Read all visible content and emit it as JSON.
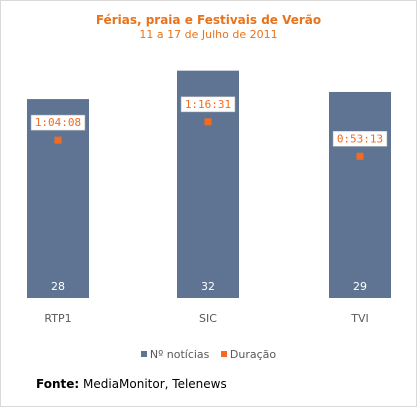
{
  "chart_data": {
    "type": "bar",
    "title": "Férias, praia e Festivais de Verão",
    "subtitle": "11 a 17 de Julho de 2011",
    "categories": [
      "RTP1",
      "SIC",
      "TVI"
    ],
    "series": [
      {
        "name": "Nº notícias",
        "type": "bar",
        "values": [
          28,
          32,
          29
        ],
        "color": "#5e7492"
      },
      {
        "name": "Duração",
        "type": "marker",
        "values": [
          "1:04:08",
          "1:16:31",
          "0:53:13"
        ],
        "seconds": [
          3848,
          4591,
          3193
        ],
        "color": "#f26b21"
      }
    ],
    "ylim": [
      0,
      33.5
    ],
    "legend_position": "bottom",
    "grid": false
  },
  "source": {
    "label": "Fonte:",
    "text": "MediaMonitor, Telenews"
  }
}
